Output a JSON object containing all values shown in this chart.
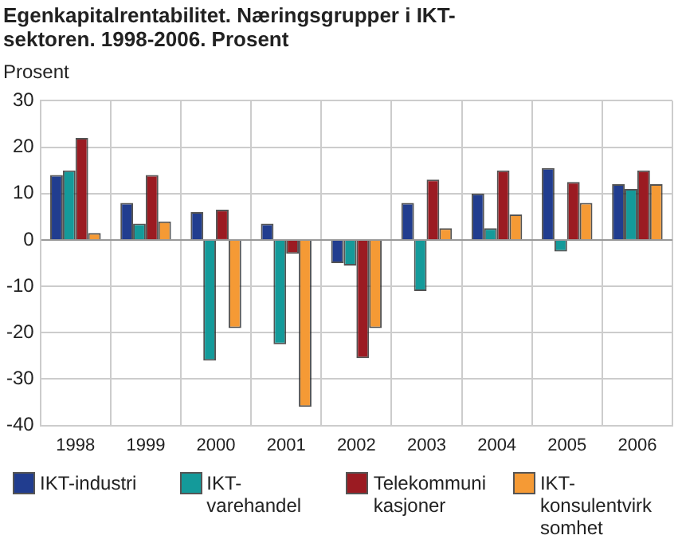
{
  "chart_data": {
    "type": "bar",
    "title": "Egenkapitalrentabilitet. Næringsgrupper i IKT-sektoren. 1998-2006. Prosent",
    "ylabel": "Prosent",
    "categories": [
      "1998",
      "1999",
      "2000",
      "2001",
      "2002",
      "2003",
      "2004",
      "2005",
      "2006"
    ],
    "series": [
      {
        "name": "IKT-industri",
        "color": "#213d8f",
        "values": [
          14,
          8,
          6,
          3.5,
          -5,
          8,
          10,
          15.5,
          12
        ]
      },
      {
        "name": "IKT-varehandel",
        "color": "#149a9a",
        "values": [
          15,
          3.5,
          -26,
          -22.5,
          -5.5,
          -11,
          2.5,
          -2.5,
          11
        ]
      },
      {
        "name": "Telekommunikasjoner",
        "color": "#9b1b22",
        "values": [
          22,
          14,
          6.5,
          -3,
          -25.5,
          13,
          15,
          12.5,
          15
        ]
      },
      {
        "name": "IKT-konsulentvirksomhet",
        "color": "#f59a35",
        "values": [
          1.5,
          4,
          -19,
          -36,
          -19,
          2.5,
          5.5,
          8,
          12
        ]
      }
    ],
    "ylim": [
      -40,
      30
    ],
    "yticks": [
      -40,
      -30,
      -20,
      -10,
      0,
      10,
      20,
      30
    ],
    "grid": true,
    "legend": "bottom"
  }
}
